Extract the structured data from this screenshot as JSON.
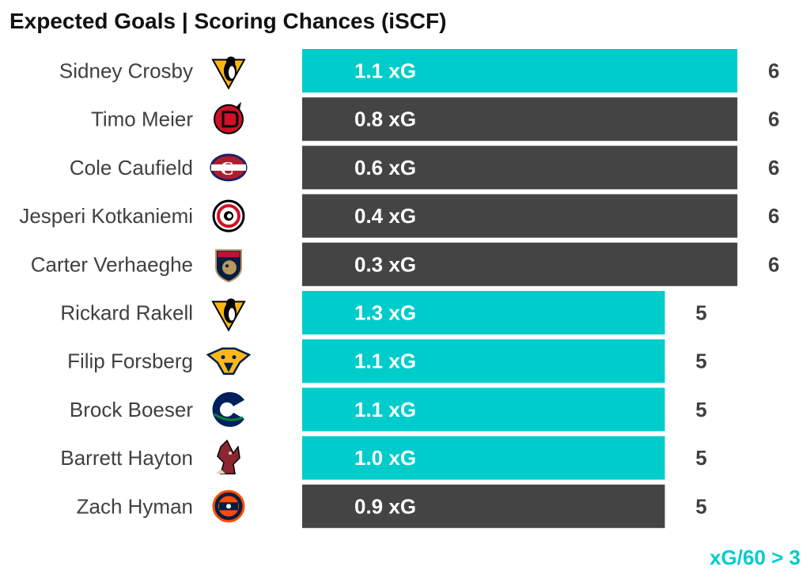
{
  "chart_data": {
    "type": "bar",
    "orientation": "horizontal",
    "title": "Expected Goals | Scoring Chances (iSCF)",
    "xlabel": "",
    "ylabel": "",
    "xlim": [
      0,
      6
    ],
    "grid": false,
    "legend_note": "xG/60 > 3",
    "legend_position": "bottom-right",
    "colors": {
      "highlight": "#00CCCC",
      "default": "#444444"
    },
    "categories": [
      "Sidney Crosby",
      "Timo Meier",
      "Cole Caufield",
      "Jesperi Kotkaniemi",
      "Carter Verhaeghe",
      "Rickard Rakell",
      "Filip Forsberg",
      "Brock Boeser",
      "Barrett Hayton",
      "Zach Hyman"
    ],
    "values": [
      6,
      6,
      6,
      6,
      6,
      5,
      5,
      5,
      5,
      5
    ],
    "bar_labels": [
      "1.1 xG",
      "0.8 xG",
      "0.6 xG",
      "0.4 xG",
      "0.3 xG",
      "1.3 xG",
      "1.1 xG",
      "1.1 xG",
      "1.0 xG",
      "0.9 xG"
    ],
    "xg": [
      1.1,
      0.8,
      0.6,
      0.4,
      0.3,
      1.3,
      1.1,
      1.1,
      1.0,
      0.9
    ],
    "highlighted": [
      true,
      false,
      false,
      false,
      false,
      true,
      true,
      true,
      true,
      false
    ],
    "teams": [
      "penguins-logo-icon",
      "devils-logo-icon",
      "canadiens-logo-icon",
      "hurricanes-logo-icon",
      "panthers-logo-icon",
      "penguins-logo-icon",
      "predators-logo-icon",
      "canucks-logo-icon",
      "coyotes-logo-icon",
      "oilers-logo-icon"
    ]
  }
}
